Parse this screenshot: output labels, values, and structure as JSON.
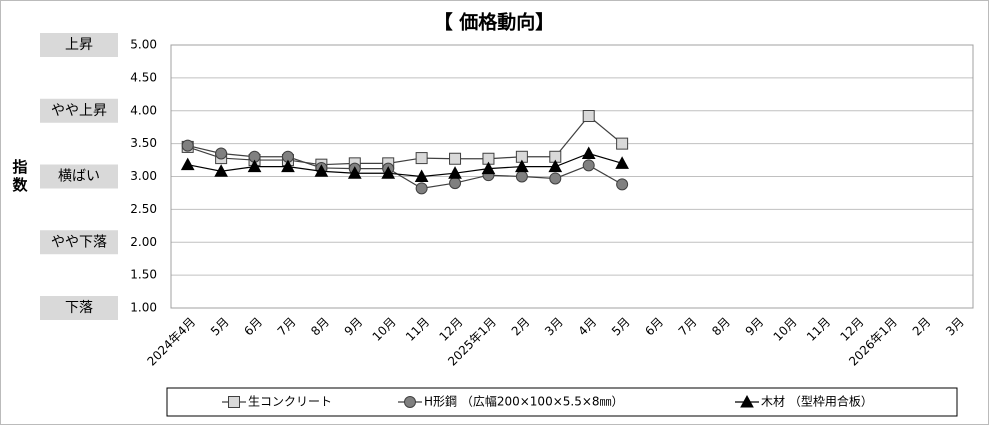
{
  "chart_data": {
    "type": "line",
    "title": "【 価格動向】",
    "y_label": "指数",
    "categories": [
      "2024年4月",
      "5月",
      "6月",
      "7月",
      "8月",
      "9月",
      "10月",
      "11月",
      "12月",
      "2025年1月",
      "2月",
      "3月",
      "4月",
      "5月",
      "6月",
      "7月",
      "8月",
      "9月",
      "10月",
      "11月",
      "12月",
      "2026年1月",
      "2月",
      "3月"
    ],
    "series": [
      {
        "name": "生コンクリート",
        "color": "#404040",
        "marker": "square",
        "marker_color": "#d9d9d9",
        "values": [
          3.45,
          3.28,
          3.25,
          3.25,
          3.18,
          3.2,
          3.2,
          3.28,
          3.27,
          3.27,
          3.3,
          3.3,
          3.92,
          3.5,
          null,
          null,
          null,
          null,
          null,
          null,
          null,
          null,
          null,
          null
        ]
      },
      {
        "name": "H形鋼 （広幅200×100×5.5×8㎜）",
        "color": "#404040",
        "marker": "circle",
        "marker_color": "#808080",
        "values": [
          3.47,
          3.35,
          3.3,
          3.3,
          3.13,
          3.12,
          3.12,
          2.82,
          2.9,
          3.02,
          3.0,
          2.97,
          3.17,
          2.88,
          null,
          null,
          null,
          null,
          null,
          null,
          null,
          null,
          null,
          null
        ]
      },
      {
        "name": "木材 （型枠用合板）",
        "color": "#000000",
        "marker": "triangle",
        "marker_color": "#000000",
        "values": [
          3.18,
          3.08,
          3.15,
          3.15,
          3.08,
          3.05,
          3.05,
          3.0,
          3.05,
          3.12,
          3.15,
          3.15,
          3.35,
          3.2,
          null,
          null,
          null,
          null,
          null,
          null,
          null,
          null,
          null,
          null
        ]
      }
    ],
    "ylim": [
      1,
      5
    ],
    "yticks": [
      {
        "value": 1,
        "label": "1.00"
      },
      {
        "value": 1.5,
        "label": "1.50"
      },
      {
        "value": 2,
        "label": "2.00"
      },
      {
        "value": 2.5,
        "label": "2.50"
      },
      {
        "value": 3,
        "label": "3.00"
      },
      {
        "value": 3.5,
        "label": "3.50"
      },
      {
        "value": 4,
        "label": "4.00"
      },
      {
        "value": 4.5,
        "label": "4.50"
      },
      {
        "value": 5,
        "label": "5.00"
      }
    ],
    "bands": [
      {
        "label": "上昇",
        "value": 5
      },
      {
        "label": "やや上昇",
        "value": 4
      },
      {
        "label": "横ばい",
        "value": 3
      },
      {
        "label": "やや下落",
        "value": 2
      },
      {
        "label": "下落",
        "value": 1
      }
    ],
    "grid": true,
    "legend": "bottom"
  }
}
